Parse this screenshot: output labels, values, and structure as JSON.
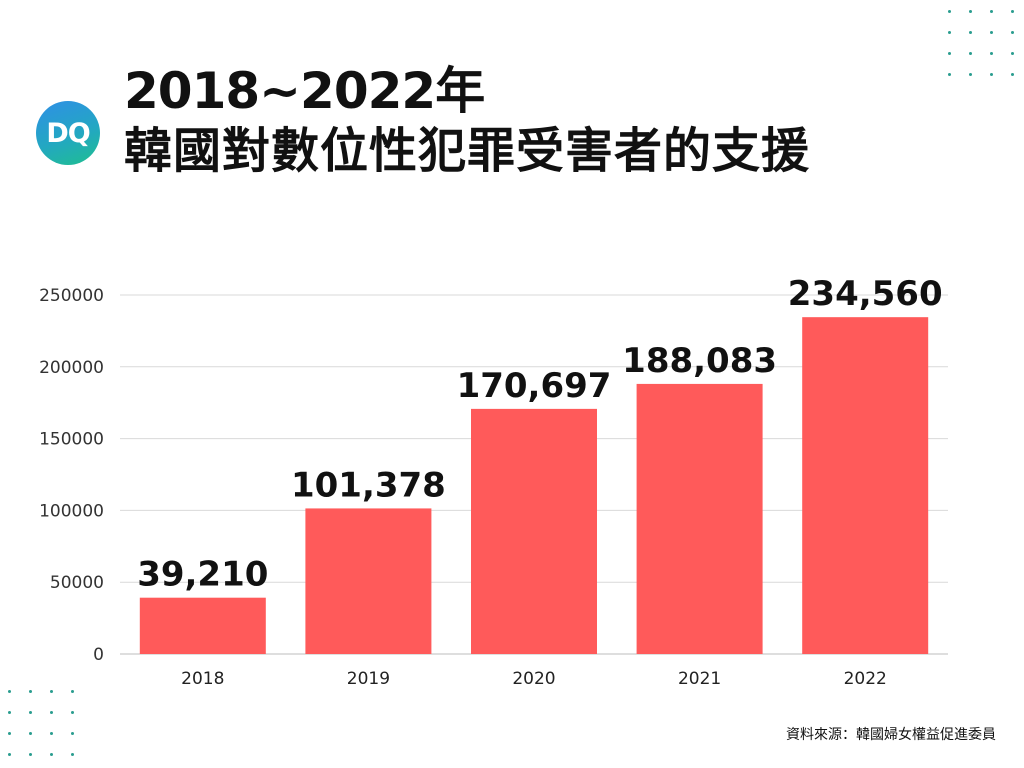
{
  "logo": {
    "text": "DQ"
  },
  "header": {
    "title_line1": "2018~2022年",
    "title_line2": "韓國對數位性犯罪受害者的支援"
  },
  "source": "資料來源：韓國婦女權益促進委員",
  "colors": {
    "bar": "#ff5a5a",
    "grid": "#d9d9d9",
    "dots": "#2a9d8f",
    "text": "#111111"
  },
  "chart_data": {
    "type": "bar",
    "categories": [
      "2018",
      "2019",
      "2020",
      "2021",
      "2022"
    ],
    "values": [
      39210,
      101378,
      170697,
      188083,
      234560
    ],
    "data_labels": [
      "39,210",
      "101,378",
      "170,697",
      "188,083",
      "234,560"
    ],
    "yticks": [
      "0",
      "50000",
      "100000",
      "150000",
      "200000",
      "250000"
    ],
    "ylim": [
      0,
      250000
    ],
    "grid": true,
    "legend": "none"
  }
}
